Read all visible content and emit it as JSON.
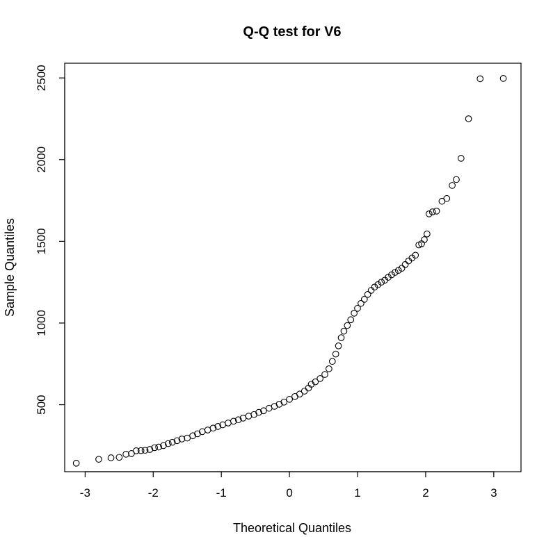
{
  "chart_data": {
    "type": "scatter",
    "title": "Q-Q test for  V6",
    "xlabel": "Theoretical Quantiles",
    "ylabel": "Sample Quantiles",
    "xlim": [
      -3.3,
      3.4
    ],
    "ylim": [
      90,
      2590
    ],
    "xticks": [
      -3,
      -2,
      -1,
      0,
      1,
      2,
      3
    ],
    "yticks": [
      500,
      1000,
      1500,
      2000,
      2500
    ],
    "xtick_labels": [
      "-3",
      "-2",
      "-1",
      "0",
      "1",
      "2",
      "3"
    ],
    "ytick_labels": [
      "500",
      "1000",
      "1500",
      "2000",
      "2500"
    ],
    "grid": false,
    "legend": "none",
    "points": [
      [
        -3.13,
        142
      ],
      [
        -2.8,
        166
      ],
      [
        -2.62,
        175
      ],
      [
        -2.5,
        178
      ],
      [
        -2.4,
        197
      ],
      [
        -2.32,
        201
      ],
      [
        -2.25,
        218
      ],
      [
        -2.18,
        219
      ],
      [
        -2.12,
        221
      ],
      [
        -2.05,
        226
      ],
      [
        -1.98,
        237
      ],
      [
        -1.92,
        241
      ],
      [
        -1.85,
        250
      ],
      [
        -1.78,
        262
      ],
      [
        -1.72,
        270
      ],
      [
        -1.65,
        280
      ],
      [
        -1.58,
        290
      ],
      [
        -1.5,
        296
      ],
      [
        -1.42,
        310
      ],
      [
        -1.35,
        322
      ],
      [
        -1.28,
        335
      ],
      [
        -1.2,
        345
      ],
      [
        -1.12,
        357
      ],
      [
        -1.05,
        367
      ],
      [
        -0.98,
        377
      ],
      [
        -0.9,
        388
      ],
      [
        -0.82,
        399
      ],
      [
        -0.75,
        408
      ],
      [
        -0.68,
        418
      ],
      [
        -0.6,
        430
      ],
      [
        -0.52,
        440
      ],
      [
        -0.45,
        453
      ],
      [
        -0.38,
        463
      ],
      [
        -0.3,
        478
      ],
      [
        -0.22,
        490
      ],
      [
        -0.15,
        503
      ],
      [
        -0.08,
        516
      ],
      [
        0.0,
        533
      ],
      [
        0.08,
        550
      ],
      [
        0.15,
        565
      ],
      [
        0.22,
        583
      ],
      [
        0.28,
        602
      ],
      [
        0.32,
        625
      ],
      [
        0.38,
        640
      ],
      [
        0.45,
        660
      ],
      [
        0.52,
        685
      ],
      [
        0.58,
        720
      ],
      [
        0.63,
        765
      ],
      [
        0.68,
        810
      ],
      [
        0.72,
        860
      ],
      [
        0.76,
        910
      ],
      [
        0.8,
        950
      ],
      [
        0.85,
        985
      ],
      [
        0.9,
        1020
      ],
      [
        0.95,
        1060
      ],
      [
        1.0,
        1090
      ],
      [
        1.05,
        1120
      ],
      [
        1.1,
        1145
      ],
      [
        1.15,
        1175
      ],
      [
        1.2,
        1200
      ],
      [
        1.25,
        1220
      ],
      [
        1.3,
        1235
      ],
      [
        1.35,
        1250
      ],
      [
        1.4,
        1262
      ],
      [
        1.45,
        1280
      ],
      [
        1.5,
        1295
      ],
      [
        1.55,
        1310
      ],
      [
        1.6,
        1322
      ],
      [
        1.65,
        1335
      ],
      [
        1.7,
        1358
      ],
      [
        1.75,
        1380
      ],
      [
        1.8,
        1398
      ],
      [
        1.85,
        1415
      ],
      [
        1.9,
        1478
      ],
      [
        1.94,
        1485
      ],
      [
        1.98,
        1510
      ],
      [
        2.02,
        1545
      ],
      [
        2.05,
        1668
      ],
      [
        2.1,
        1680
      ],
      [
        2.16,
        1685
      ],
      [
        2.24,
        1745
      ],
      [
        2.31,
        1762
      ],
      [
        2.39,
        1842
      ],
      [
        2.45,
        1878
      ],
      [
        2.52,
        2008
      ],
      [
        2.63,
        2250
      ],
      [
        2.8,
        2495
      ],
      [
        3.14,
        2497
      ]
    ]
  }
}
